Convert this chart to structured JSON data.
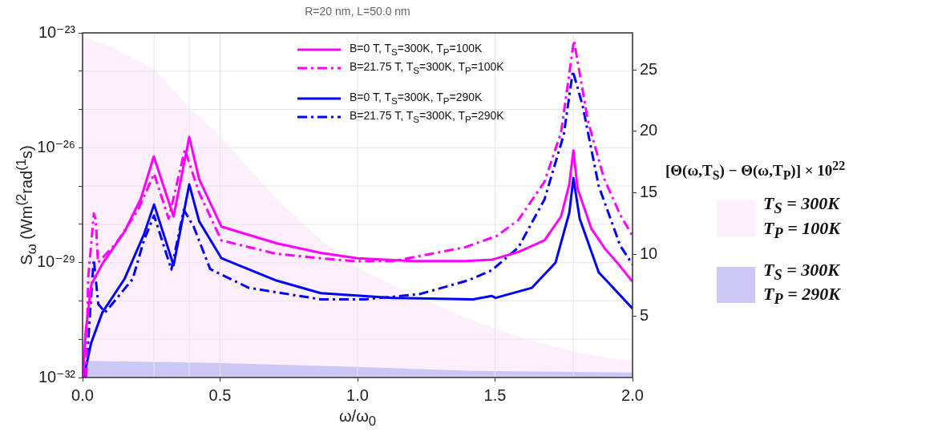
{
  "chart_data": {
    "type": "line",
    "title": "R=20 nm, L=50.0 nm",
    "xlabel": "ω/ω$_{0}$",
    "ylabel": "S$_{ω}$ (Wm$^{(2}$rad$^{(1}$s)",
    "legend_title": "[Θ(ω,T$_{S}$) − Θ(ω,T$_{P}$)] × 10$^{22}$",
    "xlim": [
      0,
      2
    ],
    "xticks": [
      {
        "value": 0,
        "label": "0.0"
      },
      {
        "value": 0.5,
        "label": "0.5"
      },
      {
        "value": 1,
        "label": "1.0"
      },
      {
        "value": 1.5,
        "label": "1.5"
      },
      {
        "value": 2,
        "label": "2.0"
      }
    ],
    "ylim": [
      1e-32,
      1e-23
    ],
    "yticks": [
      {
        "value": 1e-32,
        "label": "10⁻³²"
      },
      {
        "value": 1e-31,
        "label": null
      },
      {
        "value": 1e-30,
        "label": null
      },
      {
        "value": 1e-29,
        "label": "10⁻²⁹"
      },
      {
        "value": 1e-28,
        "label": null
      },
      {
        "value": 1e-27,
        "label": null
      },
      {
        "value": 1e-26,
        "label": "10⁻²⁶"
      },
      {
        "value": 1e-25,
        "label": null
      },
      {
        "value": 1e-24,
        "label": null
      },
      {
        "value": 1e-23,
        "label": "10⁻²³"
      }
    ],
    "y2lim": [
      0,
      28
    ],
    "y2ticks": [
      5,
      10,
      15,
      20,
      25
    ],
    "log": "y",
    "grid": true,
    "legend": "top",
    "ref_lines": [
      {
        "axis": "x",
        "value": 0.26,
        "color": "#e6e6e6"
      },
      {
        "axis": "x",
        "value": 0.388,
        "color": "#e6e6e6"
      },
      {
        "axis": "x",
        "value": 1.785,
        "color": "#e6e6e6"
      }
    ],
    "series": [
      {
        "name": "T$_{S}$ = 300K\nT$_{P}$ = 100K",
        "type": "area",
        "axis": "y2",
        "color": "#fdeffb",
        "x": [
          0,
          0.1,
          0.26,
          0.38,
          0.5,
          0.6,
          0.71,
          0.87,
          1.0,
          1.2,
          1.42,
          1.6,
          1.8,
          2.0
        ],
        "values": [
          27.7,
          26.9,
          25.05,
          22.1,
          19.6,
          17.1,
          14.4,
          11.1,
          8.9,
          6.7,
          4.6,
          3.2,
          2.0,
          1.3
        ]
      },
      {
        "name": "T$_{S}$ = 300K\nT$_{P}$ = 290K",
        "type": "area",
        "axis": "y2",
        "color": "#cbc8f6",
        "x": [
          0,
          0.5,
          1.0,
          1.42,
          2.0
        ],
        "values": [
          1.35,
          1.18,
          0.86,
          0.53,
          0.4
        ]
      },
      {
        "name": "B=0 T, T$_{S}$=300K, T$_{P}$=100K",
        "color": "#ff00ff",
        "line_style": "solid",
        "x": [
          0.001,
          0.011,
          0.032,
          0.072,
          0.152,
          0.212,
          0.259,
          0.331,
          0.388,
          0.424,
          0.505,
          0.705,
          0.866,
          1.0,
          1.2,
          1.39,
          1.49,
          1.585,
          1.68,
          1.74,
          1.77,
          1.785,
          1.8,
          1.85,
          1.9,
          1.95,
          2.0
        ],
        "values": [
          1e-32,
          1.5e-31,
          2.7e-30,
          9.3e-30,
          6.3e-29,
          4.7e-28,
          5.9e-27,
          1.6e-28,
          1.9e-26,
          1.5e-27,
          8.7e-29,
          3.2e-29,
          1.8e-29,
          1.3e-29,
          1.1e-29,
          1.1e-29,
          1.2e-29,
          1.9e-29,
          3.8e-29,
          1.6e-28,
          1.1e-27,
          8.5e-27,
          8.7e-28,
          7.8e-29,
          2.3e-29,
          8.9e-30,
          3.2e-30
        ]
      },
      {
        "name": "B=21.75 T, T$_{S}$=300K, T$_{P}$=100K",
        "color": "#ff00ff",
        "line_style": "dashdot",
        "x": [
          0.012,
          0.021,
          0.041,
          0.048,
          0.056,
          0.122,
          0.202,
          0.26,
          0.313,
          0.372,
          0.424,
          0.505,
          0.705,
          0.866,
          0.983,
          1.13,
          1.39,
          1.507,
          1.585,
          1.68,
          1.74,
          1.787,
          1.838,
          1.896,
          1.955,
          2.0
        ],
        "values": [
          1e-32,
          4.4e-30,
          1.9e-28,
          1.3e-28,
          1e-29,
          3.2e-29,
          2.4e-28,
          2.1e-27,
          1.4e-28,
          8.9e-27,
          6.6e-28,
          3.8e-29,
          1.7e-29,
          1.3e-29,
          1.1e-29,
          1.1e-29,
          2.5e-29,
          5e-29,
          1.3e-28,
          1.3e-27,
          2.5e-26,
          6.3e-24,
          5e-26,
          1.6e-27,
          1.8e-28,
          5e-29
        ]
      },
      {
        "name": "B=0 T, T$_{S}$=300K, T$_{P}$=290K",
        "color": "#0000ff",
        "line_style": "solid",
        "x": [
          0.004,
          0.031,
          0.072,
          0.152,
          0.223,
          0.26,
          0.331,
          0.388,
          0.424,
          0.505,
          0.705,
          0.866,
          1.128,
          1.42,
          1.488,
          1.502,
          1.634,
          1.72,
          1.77,
          1.785,
          1.808,
          1.877,
          2.0
        ],
        "values": [
          1e-32,
          7.9e-32,
          5e-31,
          3.7e-30,
          5.4e-29,
          3.3e-28,
          8.5e-30,
          1.1e-27,
          1.2e-28,
          1.3e-29,
          3.4e-30,
          1.6e-30,
          1.2e-30,
          1.1e-30,
          1.35e-30,
          1.2e-30,
          2.2e-30,
          1e-29,
          2e-28,
          1.6e-27,
          1.4e-28,
          5.6e-30,
          6.3e-31
        ]
      },
      {
        "name": "B=21.75 T, T$_{S}$=300K, T$_{P}$=290K",
        "color": "#0000ff",
        "line_style": "dashdot",
        "x": [
          0.012,
          0.036,
          0.041,
          0.057,
          0.082,
          0.182,
          0.223,
          0.26,
          0.323,
          0.368,
          0.404,
          0.464,
          0.604,
          0.866,
          1.03,
          1.225,
          1.4,
          1.488,
          1.585,
          1.68,
          1.75,
          1.783,
          1.818,
          1.877,
          1.955,
          2.0
        ],
        "values": [
          1e-32,
          4.4e-30,
          1.2e-29,
          8.3e-31,
          5e-31,
          3.7e-30,
          3.8e-29,
          1.7e-28,
          6.6e-30,
          2.4e-28,
          8.7e-29,
          6.8e-30,
          2.2e-30,
          1.1e-30,
          1.1e-30,
          1.5e-30,
          3.4e-30,
          6.3e-30,
          2.5e-29,
          4.5e-28,
          2.2e-26,
          1e-24,
          1.3e-25,
          1e-27,
          2.8e-29,
          8.9e-30
        ]
      }
    ]
  }
}
